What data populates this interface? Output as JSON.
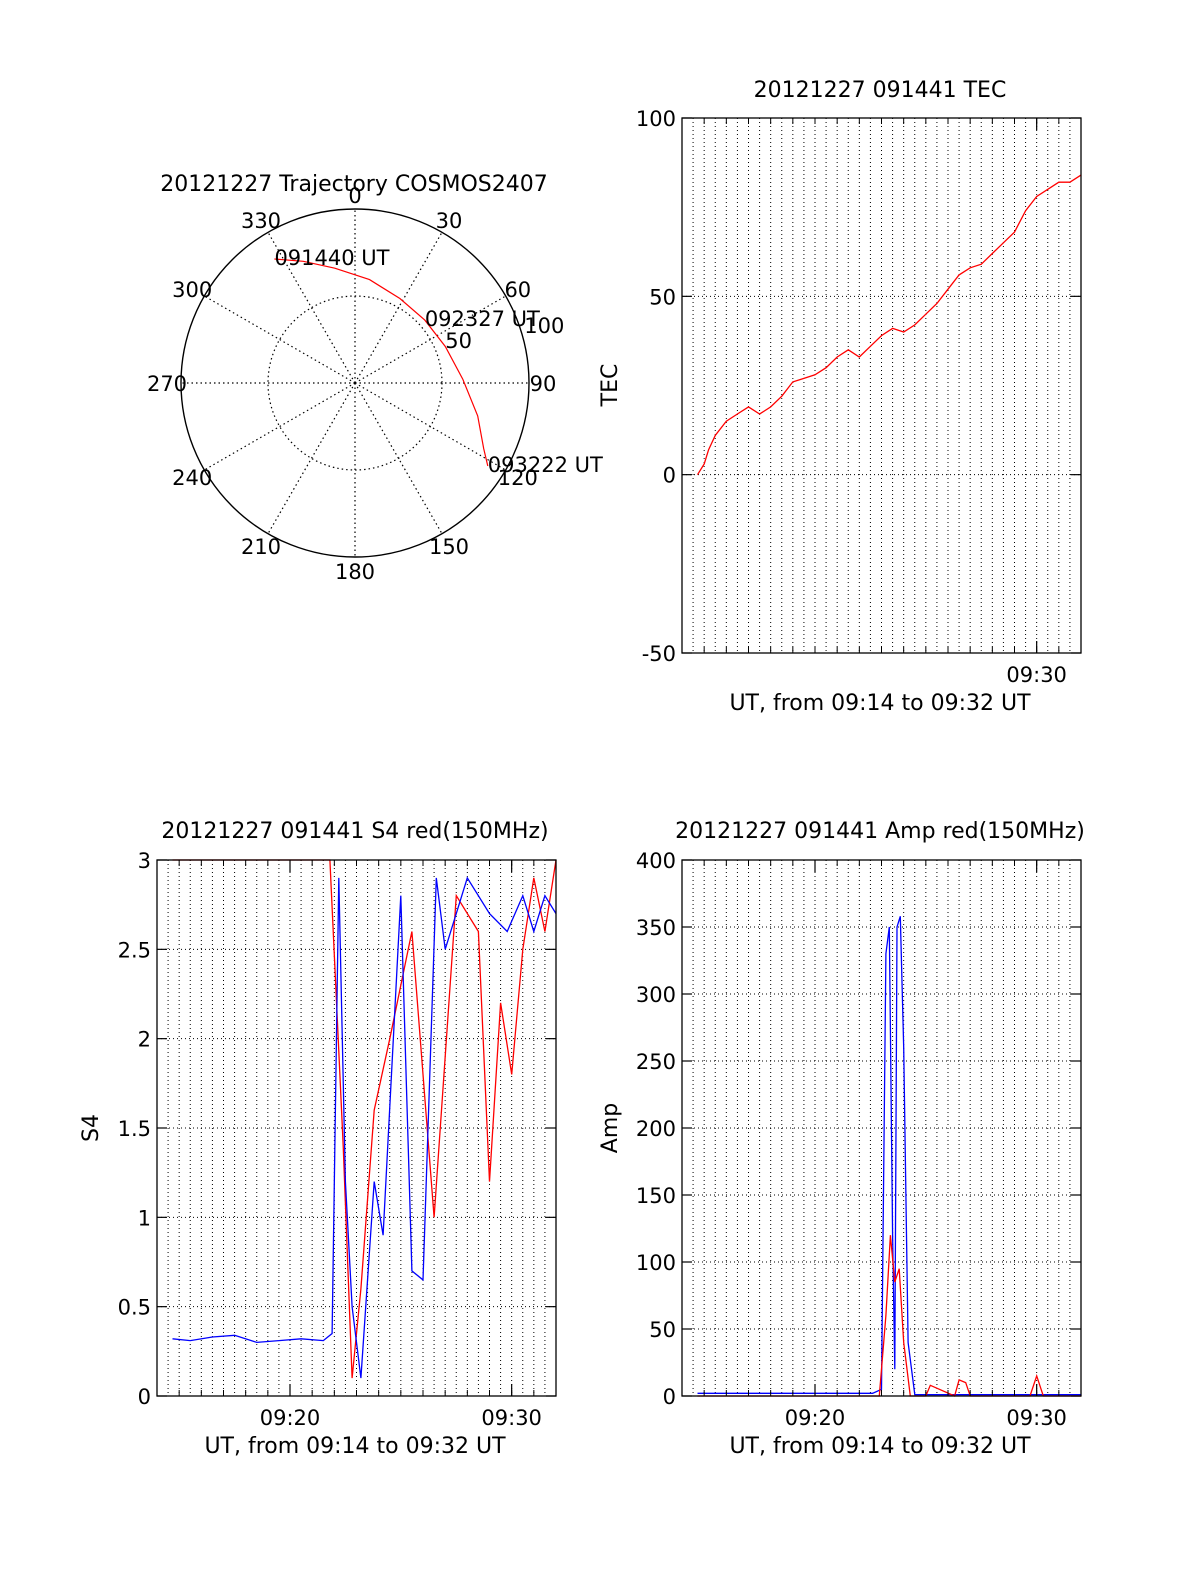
{
  "colors": {
    "red": "#ff0000",
    "blue": "#0000ff",
    "axis": "#000000",
    "grid": "#000000"
  },
  "chart_data": [
    {
      "id": "polar",
      "type": "polar-trajectory",
      "title": "20121227 Trajectory COSMOS2407",
      "azimuth_labels": [
        {
          "deg": 0,
          "text": "0"
        },
        {
          "deg": 30,
          "text": "30"
        },
        {
          "deg": 60,
          "text": "60"
        },
        {
          "deg": 90,
          "text": "90"
        },
        {
          "deg": 120,
          "text": "120"
        },
        {
          "deg": 150,
          "text": "150"
        },
        {
          "deg": 180,
          "text": "180"
        },
        {
          "deg": 210,
          "text": "210"
        },
        {
          "deg": 240,
          "text": "240"
        },
        {
          "deg": 270,
          "text": "270"
        },
        {
          "deg": 300,
          "text": "300"
        },
        {
          "deg": 330,
          "text": "330"
        }
      ],
      "radial_labels": [
        {
          "value": 50,
          "text": "50"
        },
        {
          "value": 100,
          "text": "100"
        }
      ],
      "radial_max": 100,
      "track": [
        {
          "az": 327,
          "r": 85
        },
        {
          "az": 337,
          "r": 76
        },
        {
          "az": 350,
          "r": 67
        },
        {
          "az": 8,
          "r": 60
        },
        {
          "az": 28,
          "r": 55
        },
        {
          "az": 48,
          "r": 54
        },
        {
          "az": 68,
          "r": 56
        },
        {
          "az": 88,
          "r": 62
        },
        {
          "az": 105,
          "r": 73
        },
        {
          "az": 117,
          "r": 83
        },
        {
          "az": 122,
          "r": 90
        }
      ],
      "track_labels": [
        {
          "text": "091440 UT",
          "az": 327,
          "r": 85
        },
        {
          "text": "092327 UT",
          "az": 48,
          "r": 54
        },
        {
          "text": "093222 UT",
          "az": 122,
          "r": 90
        }
      ]
    },
    {
      "id": "tec",
      "type": "line",
      "title": "20121227 091441 TEC",
      "xlabel": "UT, from 09:14 to 09:32 UT",
      "ylabel": "TEC",
      "xlim": [
        "09:14",
        "09:32"
      ],
      "ylim": [
        -50,
        100
      ],
      "yticks": [
        -50,
        0,
        50,
        100
      ],
      "xticks": [
        "09:30"
      ],
      "grid": true,
      "series": [
        {
          "color": "red",
          "x": [
            "09:14.7",
            "09:15.0",
            "09:15.2",
            "09:15.5",
            "09:16.0",
            "09:16.5",
            "09:17.0",
            "09:17.5",
            "09:18.0",
            "09:18.5",
            "09:19.0",
            "09:19.5",
            "09:20.0",
            "09:20.5",
            "09:21.0",
            "09:21.5",
            "09:22.0",
            "09:22.5",
            "09:23.0",
            "09:23.5",
            "09:24.0",
            "09:24.5",
            "09:25.0",
            "09:25.5",
            "09:26.0",
            "09:26.5",
            "09:27.0",
            "09:27.5",
            "09:28.0",
            "09:28.5",
            "09:29.0",
            "09:29.5",
            "09:30.0",
            "09:30.5",
            "09:31.0",
            "09:31.5",
            "09:32.0"
          ],
          "y": [
            0,
            3,
            7,
            11,
            15,
            17,
            19,
            17,
            19,
            22,
            26,
            27,
            28,
            30,
            33,
            35,
            33,
            36,
            39,
            41,
            40,
            42,
            45,
            48,
            52,
            56,
            58,
            59,
            62,
            65,
            68,
            74,
            78,
            80,
            82,
            82,
            84
          ]
        }
      ]
    },
    {
      "id": "s4",
      "type": "line",
      "title": "20121227 091441 S4 red(150MHz)",
      "xlabel": "UT, from 09:14 to 09:32 UT",
      "ylabel": "S4",
      "xlim": [
        "09:14",
        "09:32"
      ],
      "ylim": [
        0,
        3
      ],
      "yticks": [
        0,
        0.5,
        1,
        1.5,
        2,
        2.5,
        3
      ],
      "ytick_labels": [
        "0",
        "0.5",
        "1",
        "1.5",
        "2",
        "2.5",
        "3"
      ],
      "xticks": [
        "09:20",
        "09:30"
      ],
      "grid": true,
      "series": [
        {
          "color": "red",
          "x": [
            "09:14.7",
            "09:15.5",
            "09:16.5",
            "09:17.5",
            "09:18.5",
            "09:19.5",
            "09:20.5",
            "09:21.2",
            "09:21.8",
            "09:22.4",
            "09:22.8",
            "09:23.2",
            "09:23.8",
            "09:24.5",
            "09:25.5",
            "09:26.5",
            "09:27.5",
            "09:28.5",
            "09:29.0",
            "09:29.5",
            "09:30.0",
            "09:30.5",
            "09:31.0",
            "09:31.5",
            "09:32.0"
          ],
          "y": [
            3,
            3,
            3,
            3,
            3,
            3,
            3,
            3,
            3,
            1.4,
            0.1,
            0.6,
            1.6,
            2.0,
            2.6,
            1.0,
            2.8,
            2.6,
            1.2,
            2.2,
            1.8,
            2.5,
            2.9,
            2.6,
            3
          ]
        },
        {
          "color": "blue",
          "x": [
            "09:14.7",
            "09:15.5",
            "09:16.5",
            "09:17.5",
            "09:18.5",
            "09:19.5",
            "09:20.5",
            "09:21.5",
            "09:21.9",
            "09:22.2",
            "09:22.5",
            "09:22.8",
            "09:23.2",
            "09:23.8",
            "09:24.2",
            "09:25.0",
            "09:25.5",
            "09:26.0",
            "09:26.6",
            "09:27.0",
            "09:28.0",
            "09:29.0",
            "09:29.8",
            "09:30.5",
            "09:31.0",
            "09:31.5",
            "09:32.0"
          ],
          "y": [
            0.32,
            0.31,
            0.33,
            0.34,
            0.3,
            0.31,
            0.32,
            0.31,
            0.35,
            2.9,
            1.2,
            0.5,
            0.1,
            1.2,
            0.9,
            2.8,
            0.7,
            0.65,
            2.9,
            2.5,
            2.9,
            2.7,
            2.6,
            2.8,
            2.6,
            2.8,
            2.7
          ]
        }
      ]
    },
    {
      "id": "amp",
      "type": "line",
      "title": "20121227 091441 Amp red(150MHz)",
      "xlabel": "UT, from 09:14 to 09:32 UT",
      "ylabel": "Amp",
      "xlim": [
        "09:14",
        "09:32"
      ],
      "ylim": [
        0,
        400
      ],
      "yticks": [
        0,
        50,
        100,
        150,
        200,
        250,
        300,
        350,
        400
      ],
      "xticks": [
        "09:20",
        "09:30"
      ],
      "grid": true,
      "series": [
        {
          "color": "blue",
          "x": [
            "09:14.7",
            "09:16.0",
            "09:18.0",
            "09:20.0",
            "09:22.0",
            "09:22.6",
            "09:23.0",
            "09:23.2",
            "09:23.35",
            "09:23.5",
            "09:23.6",
            "09:23.7",
            "09:23.85",
            "09:24.0",
            "09:24.2",
            "09:24.5",
            "09:26.0",
            "09:28.0",
            "09:30.0",
            "09:32.0"
          ],
          "y": [
            2,
            2,
            2,
            2,
            2,
            2,
            5,
            330,
            350,
            120,
            20,
            350,
            358,
            260,
            40,
            1,
            1,
            1,
            1,
            1
          ]
        },
        {
          "color": "red",
          "x": [
            "09:14.7",
            "09:22.9",
            "09:23.2",
            "09:23.4",
            "09:23.6",
            "09:23.8",
            "09:24.0",
            "09:24.3",
            "09:25.0",
            "09:25.2",
            "09:26.3",
            "09:26.5",
            "09:26.8",
            "09:27.0",
            "09:29.7",
            "09:30.0",
            "09:30.3",
            "09:32.0"
          ],
          "y": [
            0,
            0,
            60,
            120,
            85,
            95,
            40,
            0,
            0,
            8,
            0,
            12,
            10,
            0,
            0,
            15,
            0,
            0
          ]
        }
      ]
    }
  ]
}
